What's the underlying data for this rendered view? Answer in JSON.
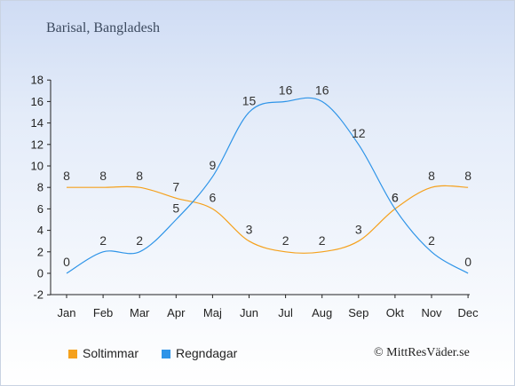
{
  "page": {
    "title": "Barisal, Bangladesh",
    "credit": "© MittResVäder.se"
  },
  "legend": [
    {
      "label": "Soltimmar",
      "color": "#f5a11c"
    },
    {
      "label": "Regndagar",
      "color": "#2e94e8"
    }
  ],
  "chart_data": {
    "type": "line",
    "categories": [
      "Jan",
      "Feb",
      "Mar",
      "Apr",
      "Maj",
      "Jun",
      "Jul",
      "Aug",
      "Sep",
      "Okt",
      "Nov",
      "Dec"
    ],
    "ylim": [
      -2,
      18
    ],
    "yticks": [
      -2,
      0,
      2,
      4,
      6,
      8,
      10,
      12,
      14,
      16,
      18
    ],
    "grid": false,
    "legend_position": "bottom-left",
    "series": [
      {
        "name": "Soltimmar",
        "color": "#f5a11c",
        "values": [
          8,
          8,
          8,
          7,
          6,
          3,
          2,
          2,
          3,
          6,
          8,
          8
        ]
      },
      {
        "name": "Regndagar",
        "color": "#2e94e8",
        "values": [
          0,
          2,
          2,
          5,
          9,
          15,
          16,
          16,
          12,
          6,
          2,
          0
        ]
      }
    ]
  }
}
